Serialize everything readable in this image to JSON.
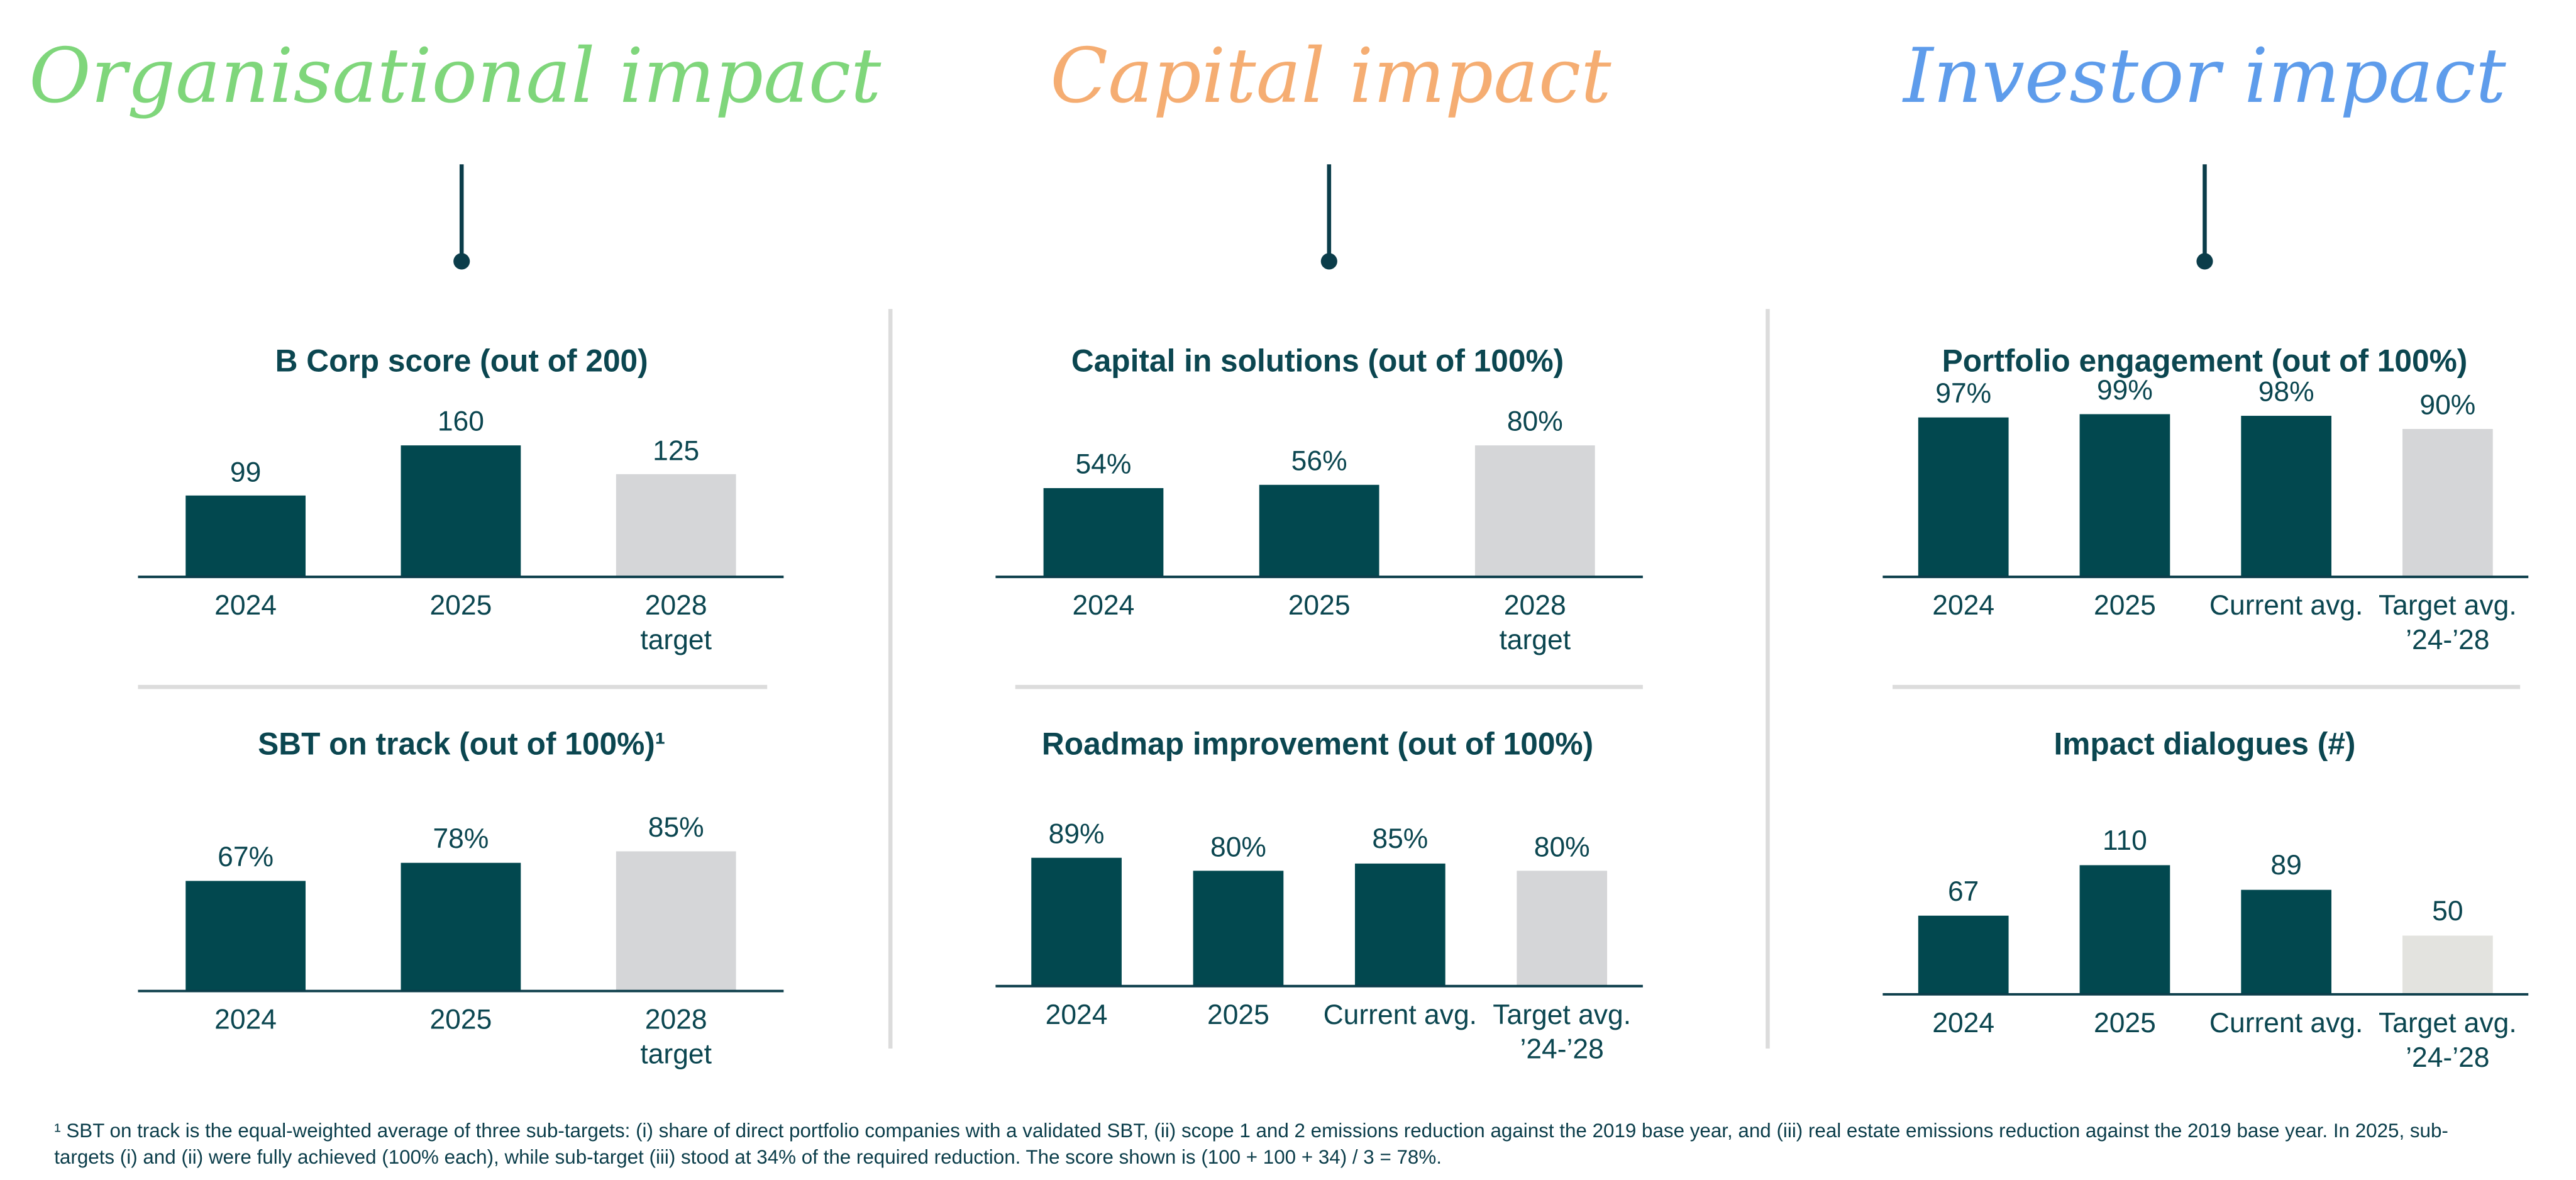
{
  "headings": [
    "Organisational impact",
    "Capital impact",
    "Investor impact"
  ],
  "chart_data": [
    {
      "type": "bar",
      "title": "B Corp score (out of 200)",
      "categories": [
        "2024",
        "2025",
        "2028 target"
      ],
      "values": [
        99,
        160,
        125
      ],
      "colors": [
        "#02484f",
        "#02484f",
        "#d5d6d8"
      ],
      "ylim": [
        0,
        200
      ]
    },
    {
      "type": "bar",
      "title": "SBT on track (out of 100%)¹",
      "categories": [
        "2024",
        "2025",
        "2028 target"
      ],
      "values": [
        67,
        78,
        85
      ],
      "value_labels": [
        "67%",
        "78%",
        "85%"
      ],
      "colors": [
        "#02484f",
        "#02484f",
        "#d5d6d8"
      ],
      "ylim": [
        0,
        100
      ]
    },
    {
      "type": "bar",
      "title": "Capital in solutions (out of 100%)",
      "categories": [
        "2024",
        "2025",
        "2028 target"
      ],
      "values": [
        54,
        56,
        80
      ],
      "value_labels": [
        "54%",
        "56%",
        "80%"
      ],
      "colors": [
        "#02484f",
        "#02484f",
        "#d5d6d8"
      ],
      "ylim": [
        0,
        100
      ]
    },
    {
      "type": "bar",
      "title": "Roadmap improvement (out of 100%)",
      "categories": [
        "2024",
        "2025",
        "Current avg.",
        "Target avg. ’24-’28"
      ],
      "values": [
        89,
        80,
        85,
        80
      ],
      "value_labels": [
        "89%",
        "80%",
        "85%",
        "80%"
      ],
      "colors": [
        "#02484f",
        "#02484f",
        "#02484f",
        "#d5d6d8"
      ],
      "ylim": [
        0,
        114
      ]
    },
    {
      "type": "bar",
      "title": "Portfolio engagement (out of 100%)",
      "categories": [
        "2024",
        "2025",
        "Current avg.",
        "Target avg. ’24-’28"
      ],
      "values": [
        97,
        99,
        98,
        90
      ],
      "value_labels": [
        "97%",
        "99%",
        "98%",
        "90%"
      ],
      "colors": [
        "#02484f",
        "#02484f",
        "#02484f",
        "#d5d6d8"
      ],
      "ylim": [
        0,
        100
      ]
    },
    {
      "type": "bar",
      "title": "Impact dialogues (#)",
      "categories": [
        "2024",
        "2025",
        "Current avg.",
        "Target avg. ’24-’28"
      ],
      "values": [
        67,
        110,
        89,
        50
      ],
      "colors": [
        "#02484f",
        "#02484f",
        "#02484f",
        "#e3e3df"
      ],
      "ylim": [
        0,
        140
      ]
    }
  ],
  "footnote": "¹ SBT on track is the equal-weighted average of three sub-targets: (i) share of direct portfolio companies with a validated SBT, (ii) scope 1 and 2 emissions reduction against the 2019 base year, and (iii) real estate emissions reduction against the 2019 base year. In 2025, sub-targets (i) and (ii) were fully achieved (100% each), while sub-target (iii) stood at 34% of the required reduction. The score shown is (100 + 100 + 34) / 3 = 78%."
}
